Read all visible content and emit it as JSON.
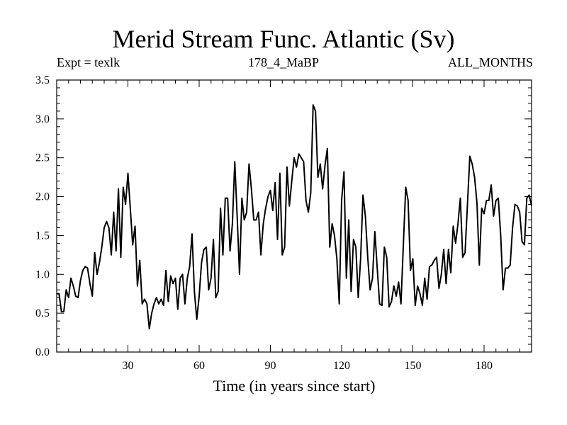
{
  "chart_data": {
    "type": "line",
    "title": "Merid Stream Func. Atlantic (Sv)",
    "subtitle_left": "Expt = texlk",
    "subtitle_center": "178_4_MaBP",
    "subtitle_right": "ALL_MONTHS",
    "xlabel": "Time (in years since start)",
    "ylabel": "",
    "xlim": [
      0,
      200
    ],
    "ylim": [
      0.0,
      3.5
    ],
    "xticks": [
      30,
      60,
      90,
      120,
      150,
      180
    ],
    "yticks": [
      0.0,
      0.5,
      1.0,
      1.5,
      2.0,
      2.5,
      3.0,
      3.5
    ],
    "ytick_labels": [
      "0.0",
      "0.5",
      "1.0",
      "1.5",
      "2.0",
      "2.5",
      "3.0",
      "3.5"
    ],
    "series": [
      {
        "name": "Merid Stream Func. Atlantic",
        "color": "#000000",
        "x": [
          0,
          1,
          2,
          3,
          4,
          5,
          6,
          7,
          8,
          9,
          10,
          11,
          12,
          13,
          14,
          15,
          16,
          17,
          18,
          19,
          20,
          21,
          22,
          23,
          24,
          25,
          26,
          27,
          28,
          29,
          30,
          31,
          32,
          33,
          34,
          35,
          36,
          37,
          38,
          39,
          40,
          41,
          42,
          43,
          44,
          45,
          46,
          47,
          48,
          49,
          50,
          51,
          52,
          53,
          54,
          55,
          56,
          57,
          58,
          59,
          60,
          61,
          62,
          63,
          64,
          65,
          66,
          67,
          68,
          69,
          70,
          71,
          72,
          73,
          74,
          75,
          76,
          77,
          78,
          79,
          80,
          81,
          82,
          83,
          84,
          85,
          86,
          87,
          88,
          89,
          90,
          91,
          92,
          93,
          94,
          95,
          96,
          97,
          98,
          99,
          100,
          101,
          102,
          103,
          104,
          105,
          106,
          107,
          108,
          109,
          110,
          111,
          112,
          113,
          114,
          115,
          116,
          117,
          118,
          119,
          120,
          121,
          122,
          123,
          124,
          125,
          126,
          127,
          128,
          129,
          130,
          131,
          132,
          133,
          134,
          135,
          136,
          137,
          138,
          139,
          140,
          141,
          142,
          143,
          144,
          145,
          146,
          147,
          148,
          149,
          150,
          151,
          152,
          153,
          154,
          155,
          156,
          157,
          158,
          159,
          160,
          161,
          162,
          163,
          164,
          165,
          166,
          167,
          168,
          169,
          170,
          171,
          172,
          173,
          174,
          175,
          176,
          177,
          178,
          179,
          180,
          181,
          182,
          183,
          184,
          185,
          186,
          187,
          188,
          189,
          190,
          191,
          192,
          193,
          194,
          195,
          196,
          197,
          198,
          199,
          200
        ],
        "values": [
          0.75,
          0.75,
          0.52,
          0.52,
          0.8,
          0.7,
          0.95,
          0.85,
          0.72,
          0.7,
          0.92,
          1.05,
          1.1,
          1.08,
          0.88,
          0.72,
          1.28,
          1.0,
          1.15,
          1.35,
          1.6,
          1.68,
          1.6,
          1.25,
          1.8,
          1.3,
          2.1,
          1.22,
          2.12,
          1.9,
          2.3,
          1.85,
          1.38,
          1.62,
          0.85,
          1.18,
          0.62,
          0.68,
          0.62,
          0.3,
          0.5,
          0.62,
          0.7,
          0.62,
          0.68,
          0.6,
          1.05,
          0.65,
          0.98,
          0.88,
          0.95,
          0.55,
          0.95,
          1.0,
          0.62,
          0.95,
          1.1,
          1.52,
          0.78,
          0.42,
          0.72,
          1.15,
          1.32,
          1.35,
          0.8,
          0.95,
          1.45,
          0.7,
          0.78,
          1.85,
          1.25,
          1.98,
          1.98,
          1.3,
          1.65,
          2.45,
          1.75,
          1.0,
          1.98,
          1.7,
          1.8,
          2.42,
          2.1,
          1.7,
          1.7,
          1.8,
          1.25,
          1.65,
          1.85,
          2.0,
          2.08,
          1.82,
          2.18,
          1.45,
          2.3,
          1.25,
          1.35,
          2.38,
          1.88,
          2.2,
          2.5,
          2.38,
          2.55,
          2.5,
          2.45,
          1.95,
          1.8,
          2.05,
          3.18,
          3.1,
          2.25,
          2.42,
          2.1,
          2.4,
          2.62,
          1.35,
          1.65,
          1.5,
          1.2,
          0.62,
          1.95,
          2.32,
          0.95,
          1.7,
          0.78,
          1.45,
          1.35,
          0.7,
          1.2,
          2.02,
          1.75,
          1.22,
          0.8,
          0.95,
          1.55,
          1.08,
          0.62,
          0.6,
          1.35,
          1.22,
          0.58,
          0.65,
          0.85,
          0.72,
          0.9,
          0.62,
          1.38,
          2.12,
          1.95,
          1.05,
          1.2,
          0.6,
          0.85,
          0.75,
          0.6,
          0.95,
          0.68,
          1.1,
          1.12,
          1.18,
          1.22,
          0.82,
          1.0,
          1.32,
          0.88,
          1.32,
          1.02,
          1.62,
          1.4,
          1.65,
          1.98,
          1.22,
          1.28,
          1.9,
          2.52,
          2.42,
          2.25,
          1.92,
          1.12,
          1.85,
          1.78,
          1.95,
          1.95,
          2.15,
          1.75,
          1.95,
          1.98,
          1.5,
          0.8,
          1.08,
          1.08,
          1.12,
          1.6,
          1.9,
          1.88,
          1.8,
          1.42,
          1.38,
          1.98,
          2.02,
          1.88
        ]
      }
    ]
  }
}
